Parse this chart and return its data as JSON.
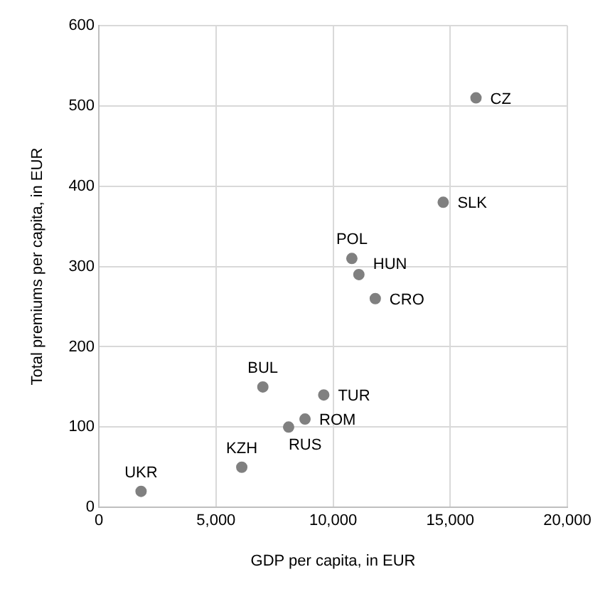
{
  "chart_data": {
    "type": "scatter",
    "xlabel": "GDP per capita, in EUR",
    "ylabel": "Total premiums per capita, in EUR",
    "x": [
      1800,
      6100,
      8100,
      8800,
      7000,
      9600,
      10800,
      11100,
      11800,
      14700,
      16100
    ],
    "series": [
      {
        "color": "#808080",
        "values": [
          20,
          50,
          100,
          110,
          150,
          140,
          310,
          290,
          260,
          380,
          510
        ]
      }
    ],
    "xlim": [
      0,
      20000
    ],
    "xticks": [
      0,
      {
        "value": 5000,
        "label": "5,000"
      },
      {
        "value": 10000,
        "label": "10,000"
      },
      {
        "value": 15000,
        "label": "15,000"
      },
      {
        "value": 20000,
        "label": "20,000"
      }
    ],
    "ylim": [
      0,
      600
    ],
    "yticks": [
      0,
      100,
      200,
      300,
      400,
      500,
      600
    ],
    "grid": true,
    "legend": false,
    "marker": "circle",
    "annotations": [
      {
        "text": "UKR",
        "x": 1800,
        "y": 20
      },
      {
        "text": "KZH",
        "x": 6100,
        "y": 50
      },
      {
        "text": "RUS",
        "x": 8100,
        "y": 100
      },
      {
        "text": "ROM",
        "x": 8800,
        "y": 110
      },
      {
        "text": "BUL",
        "x": 7000,
        "y": 150
      },
      {
        "text": "TUR",
        "x": 9600,
        "y": 140
      },
      {
        "text": "POL",
        "x": 10800,
        "y": 310
      },
      {
        "text": "HUN",
        "x": 11100,
        "y": 290
      },
      {
        "text": "CRO",
        "x": 11800,
        "y": 260
      },
      {
        "text": "SLK",
        "x": 14700,
        "y": 380
      },
      {
        "text": "CZ",
        "x": 16100,
        "y": 510
      }
    ]
  }
}
